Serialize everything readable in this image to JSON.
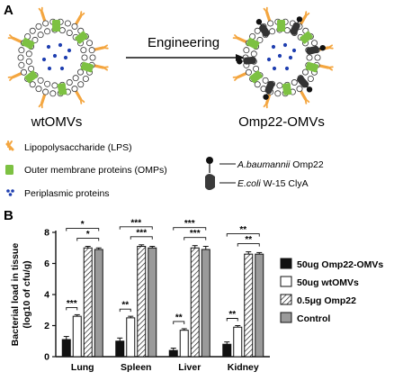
{
  "panel_a": {
    "letter": "A",
    "arrow_label": "Engineering",
    "left_label": "wtOMVs",
    "right_label": "Omp22-OMVs",
    "legend": [
      {
        "icon": "lps-icon",
        "text": "Lipopolysaccharide (LPS)",
        "color": "#f4a640"
      },
      {
        "icon": "omp-icon",
        "text": "Outer membrane proteins (OMPs)",
        "color": "#7dc142"
      },
      {
        "icon": "periplasmic-icon",
        "text": "Periplasmic proteins",
        "color": "#1f3fb0"
      }
    ],
    "fusion_legend": [
      {
        "icon": "omp22-icon",
        "italic": "A.baumannii",
        "rest": " Omp22"
      },
      {
        "icon": "clya-icon",
        "italic": "E.coli",
        "rest": " W-15 ClyA"
      }
    ]
  },
  "panel_b": {
    "letter": "B"
  },
  "chart_data": {
    "type": "bar",
    "ylabel": "Bacterial load in tissue\n(log10 of cfu/g)",
    "ylabel_lines": [
      "Bacterial load in tissue",
      "(log10 of cfu/g)"
    ],
    "ylim": [
      0,
      8
    ],
    "yticks": [
      "0",
      "2",
      "4",
      "6",
      "8"
    ],
    "categories": [
      "Lung",
      "Spleen",
      "Liver",
      "Kidney"
    ],
    "series": [
      {
        "name": "50ug Omp22-OMVs",
        "values": [
          1.1,
          1.0,
          0.4,
          0.8
        ],
        "errors": [
          0.2,
          0.2,
          0.15,
          0.15
        ],
        "fill": "#111111",
        "pattern": "solid"
      },
      {
        "name": "50ug wtOMVs",
        "values": [
          2.6,
          2.5,
          1.7,
          1.9
        ],
        "errors": [
          0.1,
          0.1,
          0.1,
          0.1
        ],
        "fill": "#ffffff",
        "pattern": "solid"
      },
      {
        "name": "0.5μg Omp22",
        "values": [
          7.0,
          7.1,
          7.0,
          6.6
        ],
        "errors": [
          0.1,
          0.1,
          0.15,
          0.15
        ],
        "fill": "#ffffff",
        "pattern": "hatch"
      },
      {
        "name": "Control",
        "values": [
          6.9,
          7.0,
          6.9,
          6.6
        ],
        "errors": [
          0.1,
          0.1,
          0.2,
          0.1
        ],
        "fill": "#9a9a9a",
        "pattern": "solid"
      }
    ],
    "significance": [
      {
        "category": 0,
        "from": 0,
        "to": 1,
        "label": "***"
      },
      {
        "category": 0,
        "from": 1,
        "to": 3,
        "label": "*"
      },
      {
        "category": 0,
        "from": 0,
        "to": 3,
        "label": "*"
      },
      {
        "category": 1,
        "from": 0,
        "to": 1,
        "label": "**"
      },
      {
        "category": 1,
        "from": 1,
        "to": 3,
        "label": "***"
      },
      {
        "category": 1,
        "from": 0,
        "to": 3,
        "label": "***"
      },
      {
        "category": 2,
        "from": 0,
        "to": 1,
        "label": "**"
      },
      {
        "category": 2,
        "from": 1,
        "to": 3,
        "label": "***"
      },
      {
        "category": 2,
        "from": 0,
        "to": 3,
        "label": "***"
      },
      {
        "category": 3,
        "from": 0,
        "to": 1,
        "label": "**"
      },
      {
        "category": 3,
        "from": 1,
        "to": 3,
        "label": "**"
      },
      {
        "category": 3,
        "from": 0,
        "to": 3,
        "label": "**"
      }
    ],
    "grid": false,
    "legend_position": "right"
  }
}
